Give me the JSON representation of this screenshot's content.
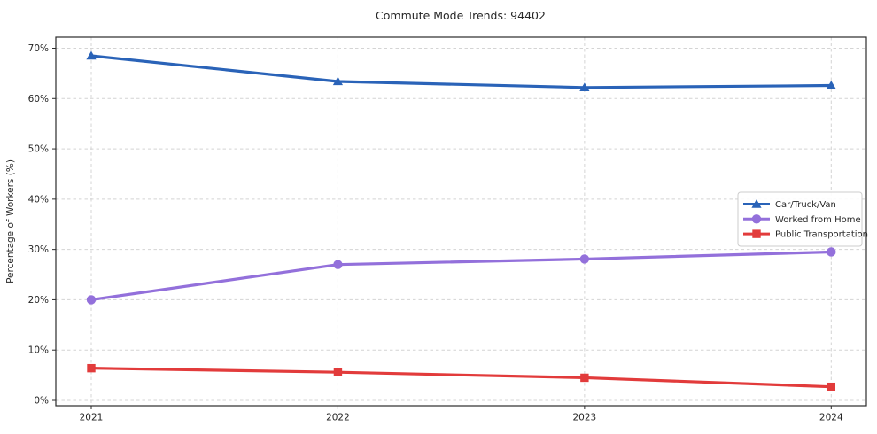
{
  "chart_data": {
    "type": "line",
    "title": "Commute Mode Trends: 94402",
    "xlabel": "",
    "ylabel": "Percentage of Workers (%)",
    "x": [
      2021,
      2022,
      2023,
      2024
    ],
    "x_tick_labels": [
      "2021",
      "2022",
      "2023",
      "2024"
    ],
    "y_ticks": [
      0,
      10,
      20,
      30,
      40,
      50,
      60,
      70
    ],
    "y_tick_labels": [
      "0%",
      "10%",
      "20%",
      "30%",
      "40%",
      "50%",
      "60%",
      "70%"
    ],
    "ylim": [
      0,
      70
    ],
    "grid": true,
    "legend_position": "center right",
    "series": [
      {
        "name": "Car/Truck/Van",
        "values": [
          68.5,
          63.4,
          62.2,
          62.6
        ],
        "color": "#2a63b8",
        "marker": "triangle"
      },
      {
        "name": "Worked from Home",
        "values": [
          20.0,
          27.0,
          28.1,
          29.5
        ],
        "color": "#9370db",
        "marker": "circle"
      },
      {
        "name": "Public Transportation",
        "values": [
          6.4,
          5.6,
          4.5,
          2.7
        ],
        "color": "#e23b3b",
        "marker": "square"
      }
    ]
  },
  "colors": {
    "background": "#ffffff",
    "grid": "#d4d4d4",
    "axis": "#2b2b2b",
    "text": "#262626",
    "legend_border": "#cccccc"
  }
}
